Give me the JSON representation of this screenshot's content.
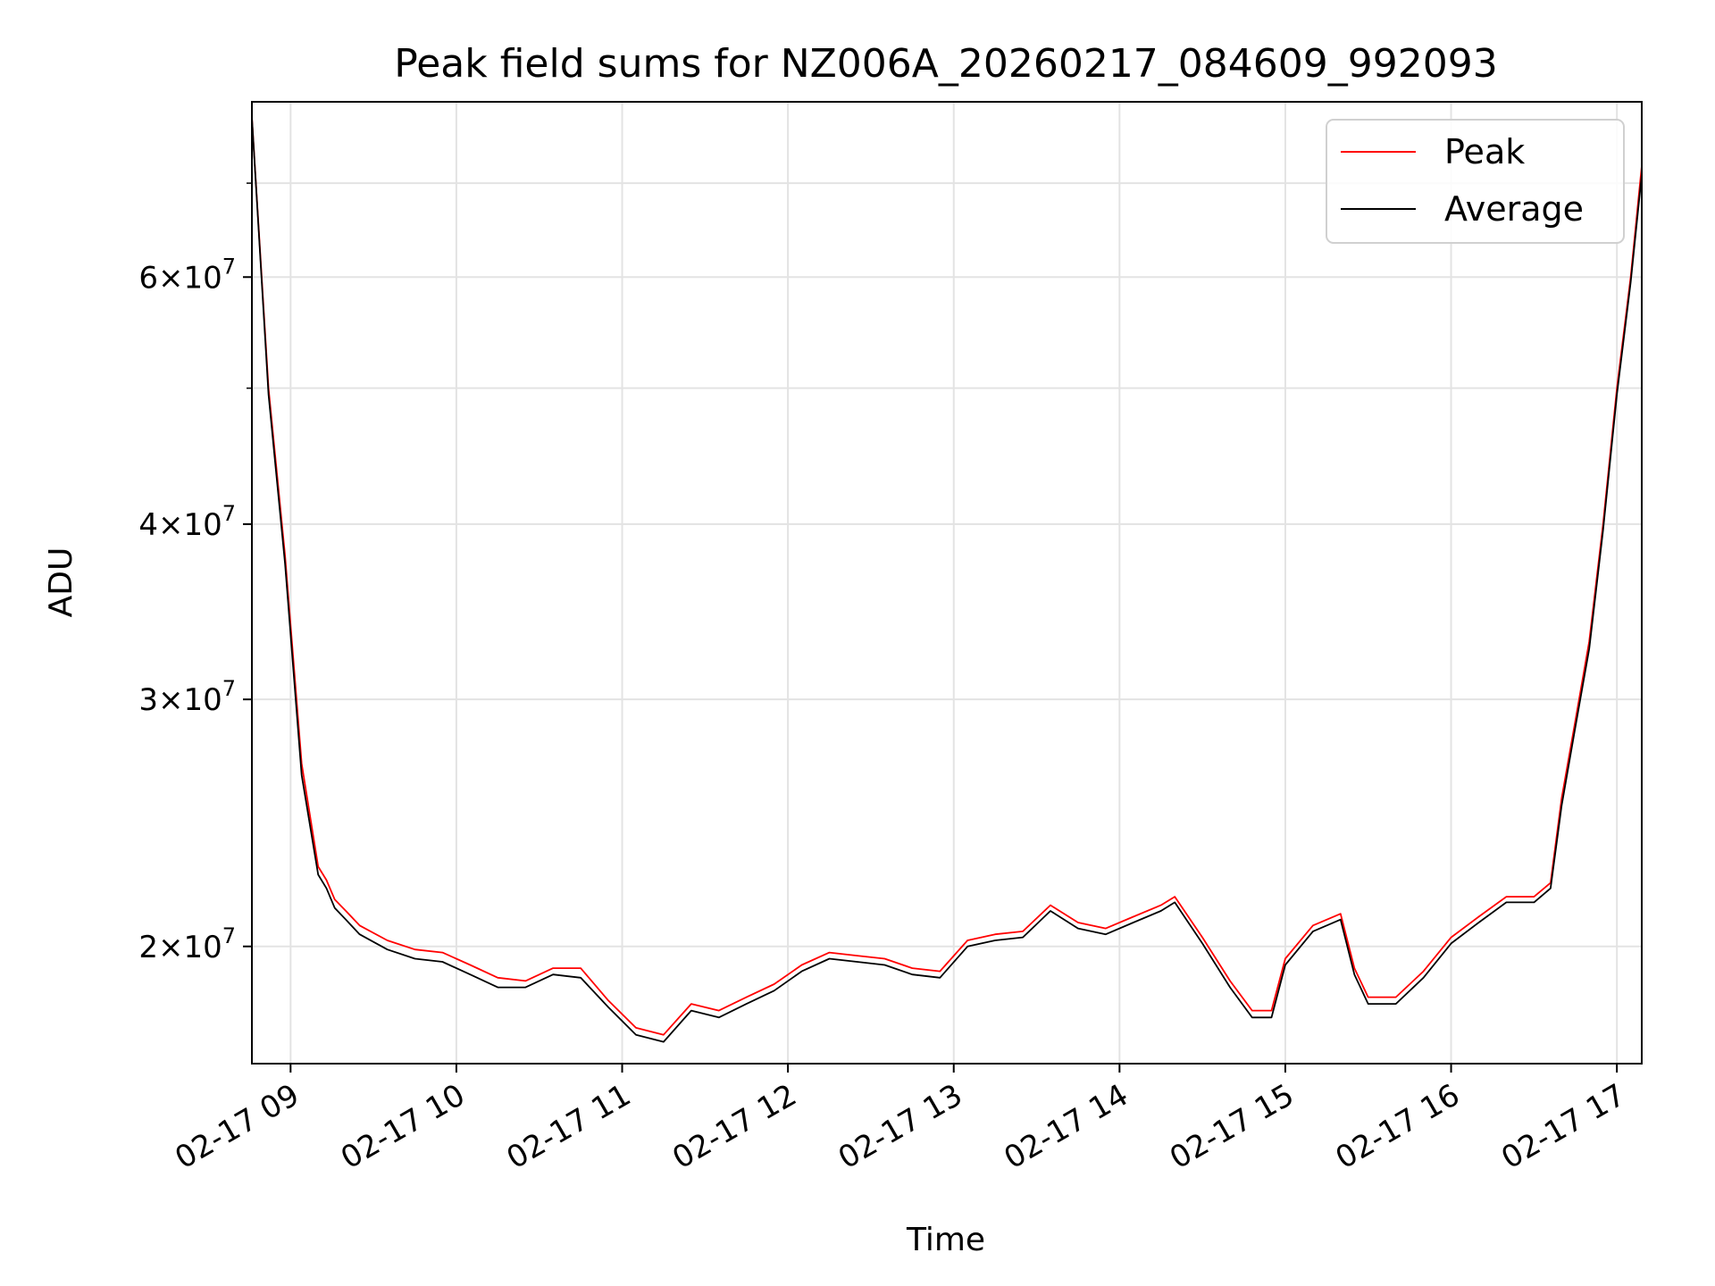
{
  "chart_data": {
    "type": "line",
    "title": "Peak field sums for NZ006A_20260217_084609_992093",
    "xlabel": "Time",
    "ylabel": "ADU",
    "y_scale": "log",
    "ylim": [
      16500000,
      80000000
    ],
    "xlim": [
      "2026-02-17 08:46",
      "2026-02-17 17:09"
    ],
    "grid": true,
    "legend": {
      "placement": "top-right",
      "entries": [
        "Peak",
        "Average"
      ]
    },
    "x_ticks": [
      {
        "x": "2026-02-17 09:00",
        "label": "02-17 09"
      },
      {
        "x": "2026-02-17 10:00",
        "label": "02-17 10"
      },
      {
        "x": "2026-02-17 11:00",
        "label": "02-17 11"
      },
      {
        "x": "2026-02-17 12:00",
        "label": "02-17 12"
      },
      {
        "x": "2026-02-17 13:00",
        "label": "02-17 13"
      },
      {
        "x": "2026-02-17 14:00",
        "label": "02-17 14"
      },
      {
        "x": "2026-02-17 15:00",
        "label": "02-17 15"
      },
      {
        "x": "2026-02-17 16:00",
        "label": "02-17 16"
      },
      {
        "x": "2026-02-17 17:00",
        "label": "02-17 17"
      }
    ],
    "y_ticks": [
      {
        "value": 20000000,
        "mantissa": "2",
        "base": "10",
        "exp": "7"
      },
      {
        "value": 30000000,
        "mantissa": "3",
        "base": "10",
        "exp": "7"
      },
      {
        "value": 40000000,
        "mantissa": "4",
        "base": "10",
        "exp": "7"
      },
      {
        "value": 60000000,
        "mantissa": "6",
        "base": "10",
        "exp": "7"
      }
    ],
    "y_minor_ticks": [
      50000000,
      70000000
    ],
    "series": [
      {
        "name": "Peak",
        "color": "#ff0000",
        "x": [
          "2026-02-17 08:46",
          "2026-02-17 08:52",
          "2026-02-17 08:58",
          "2026-02-17 09:04",
          "2026-02-17 09:10",
          "2026-02-17 09:13",
          "2026-02-17 09:16",
          "2026-02-17 09:20",
          "2026-02-17 09:25",
          "2026-02-17 09:35",
          "2026-02-17 09:45",
          "2026-02-17 09:55",
          "2026-02-17 10:05",
          "2026-02-17 10:15",
          "2026-02-17 10:25",
          "2026-02-17 10:35",
          "2026-02-17 10:45",
          "2026-02-17 10:55",
          "2026-02-17 11:05",
          "2026-02-17 11:15",
          "2026-02-17 11:25",
          "2026-02-17 11:35",
          "2026-02-17 11:45",
          "2026-02-17 11:55",
          "2026-02-17 12:05",
          "2026-02-17 12:15",
          "2026-02-17 12:25",
          "2026-02-17 12:35",
          "2026-02-17 12:45",
          "2026-02-17 12:55",
          "2026-02-17 13:05",
          "2026-02-17 13:15",
          "2026-02-17 13:25",
          "2026-02-17 13:35",
          "2026-02-17 13:45",
          "2026-02-17 13:55",
          "2026-02-17 14:05",
          "2026-02-17 14:15",
          "2026-02-17 14:20",
          "2026-02-17 14:30",
          "2026-02-17 14:40",
          "2026-02-17 14:48",
          "2026-02-17 14:55",
          "2026-02-17 15:00",
          "2026-02-17 15:10",
          "2026-02-17 15:20",
          "2026-02-17 15:25",
          "2026-02-17 15:30",
          "2026-02-17 15:40",
          "2026-02-17 15:50",
          "2026-02-17 16:00",
          "2026-02-17 16:10",
          "2026-02-17 16:20",
          "2026-02-17 16:30",
          "2026-02-17 16:36",
          "2026-02-17 16:40",
          "2026-02-17 16:45",
          "2026-02-17 16:50",
          "2026-02-17 16:55",
          "2026-02-17 17:00",
          "2026-02-17 17:05",
          "2026-02-17 17:09"
        ],
        "values": [
          78000000,
          50000000,
          38000000,
          27000000,
          22800000,
          22300000,
          21600000,
          21200000,
          20700000,
          20200000,
          19900000,
          19800000,
          19400000,
          19000000,
          18900000,
          19300000,
          19300000,
          18300000,
          17500000,
          17300000,
          18200000,
          18000000,
          18400000,
          18800000,
          19400000,
          19800000,
          19700000,
          19600000,
          19300000,
          19200000,
          20200000,
          20400000,
          20500000,
          21400000,
          20800000,
          20600000,
          21000000,
          21400000,
          21700000,
          20300000,
          18900000,
          18000000,
          18000000,
          19600000,
          20700000,
          21100000,
          19300000,
          18400000,
          18400000,
          19200000,
          20300000,
          21000000,
          21700000,
          21700000,
          22200000,
          25500000,
          29000000,
          33000000,
          40000000,
          50000000,
          60000000,
          72000000
        ]
      },
      {
        "name": "Average",
        "color": "#000000",
        "x": [
          "2026-02-17 08:46",
          "2026-02-17 08:52",
          "2026-02-17 08:58",
          "2026-02-17 09:04",
          "2026-02-17 09:10",
          "2026-02-17 09:13",
          "2026-02-17 09:16",
          "2026-02-17 09:20",
          "2026-02-17 09:25",
          "2026-02-17 09:35",
          "2026-02-17 09:45",
          "2026-02-17 09:55",
          "2026-02-17 10:05",
          "2026-02-17 10:15",
          "2026-02-17 10:25",
          "2026-02-17 10:35",
          "2026-02-17 10:45",
          "2026-02-17 10:55",
          "2026-02-17 11:05",
          "2026-02-17 11:15",
          "2026-02-17 11:25",
          "2026-02-17 11:35",
          "2026-02-17 11:45",
          "2026-02-17 11:55",
          "2026-02-17 12:05",
          "2026-02-17 12:15",
          "2026-02-17 12:25",
          "2026-02-17 12:35",
          "2026-02-17 12:45",
          "2026-02-17 12:55",
          "2026-02-17 13:05",
          "2026-02-17 13:15",
          "2026-02-17 13:25",
          "2026-02-17 13:35",
          "2026-02-17 13:45",
          "2026-02-17 13:55",
          "2026-02-17 14:05",
          "2026-02-17 14:15",
          "2026-02-17 14:20",
          "2026-02-17 14:30",
          "2026-02-17 14:40",
          "2026-02-17 14:48",
          "2026-02-17 14:55",
          "2026-02-17 15:00",
          "2026-02-17 15:10",
          "2026-02-17 15:20",
          "2026-02-17 15:25",
          "2026-02-17 15:30",
          "2026-02-17 15:40",
          "2026-02-17 15:50",
          "2026-02-17 16:00",
          "2026-02-17 16:10",
          "2026-02-17 16:20",
          "2026-02-17 16:30",
          "2026-02-17 16:36",
          "2026-02-17 16:40",
          "2026-02-17 16:45",
          "2026-02-17 16:50",
          "2026-02-17 16:55",
          "2026-02-17 17:00",
          "2026-02-17 17:05",
          "2026-02-17 17:09"
        ],
        "values": [
          78000000,
          49500000,
          37500000,
          26500000,
          22500000,
          22000000,
          21300000,
          20900000,
          20400000,
          19900000,
          19600000,
          19500000,
          19100000,
          18700000,
          18700000,
          19100000,
          19000000,
          18100000,
          17300000,
          17100000,
          18000000,
          17800000,
          18200000,
          18600000,
          19200000,
          19600000,
          19500000,
          19400000,
          19100000,
          19000000,
          20000000,
          20200000,
          20300000,
          21200000,
          20600000,
          20400000,
          20800000,
          21200000,
          21500000,
          20100000,
          18700000,
          17800000,
          17800000,
          19400000,
          20500000,
          20900000,
          19100000,
          18200000,
          18200000,
          19000000,
          20100000,
          20800000,
          21500000,
          21500000,
          22000000,
          25200000,
          28700000,
          32600000,
          39600000,
          49500000,
          59500000,
          71000000
        ]
      }
    ]
  }
}
